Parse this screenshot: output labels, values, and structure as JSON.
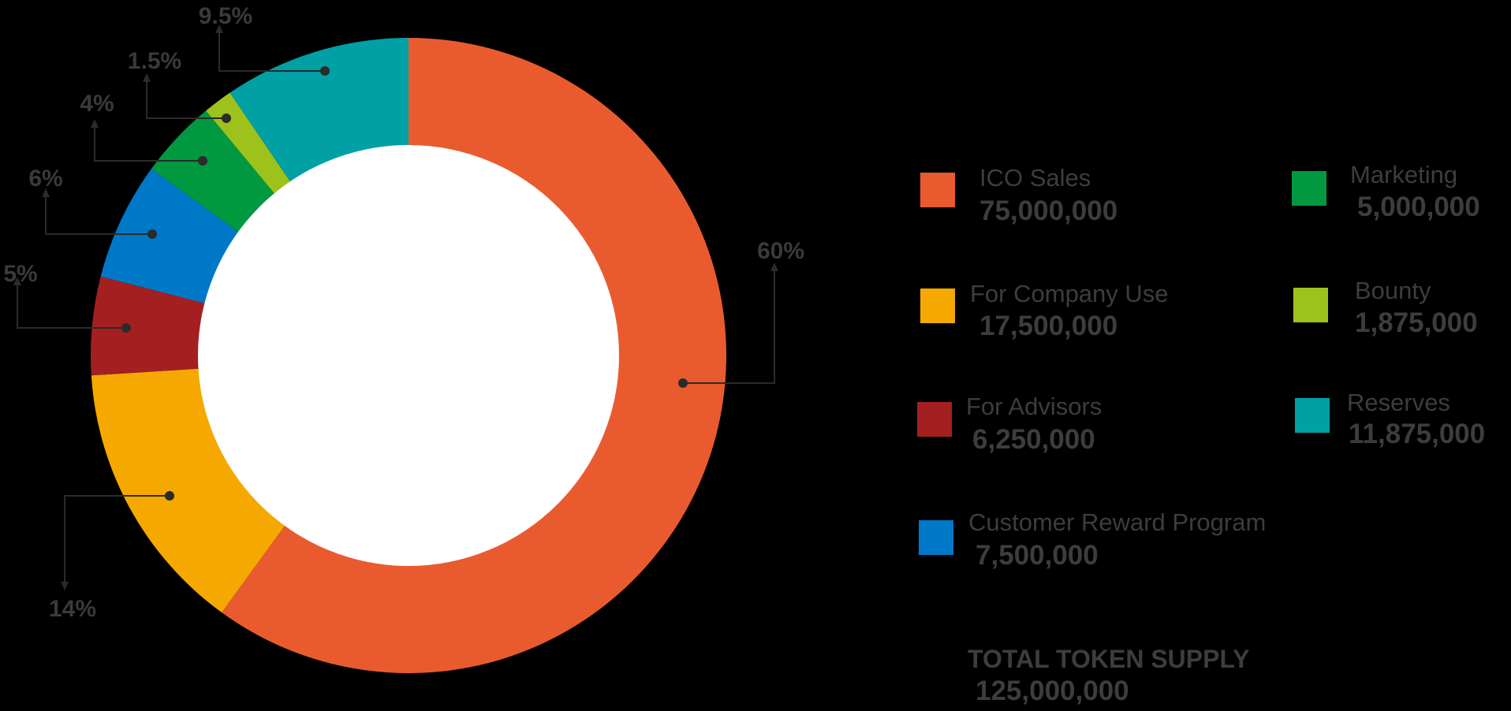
{
  "chart_data": {
    "type": "pie",
    "donut": true,
    "slices": [
      {
        "label": "ICO Sales",
        "percent": 60,
        "percent_label": "60%",
        "value": "75,000,000",
        "color": "#E95B2F"
      },
      {
        "label": "For Company Use",
        "percent": 14,
        "percent_label": "14%",
        "value": "17,500,000",
        "color": "#F5A800"
      },
      {
        "label": "For Advisors",
        "percent": 5,
        "percent_label": "5%",
        "value": "6,250,000",
        "color": "#A42020"
      },
      {
        "label": "Customer Reward Program",
        "percent": 6,
        "percent_label": "6%",
        "value": "7,500,000",
        "color": "#0078C8"
      },
      {
        "label": "Marketing",
        "percent": 4,
        "percent_label": "4%",
        "value": "5,000,000",
        "color": "#00993F"
      },
      {
        "label": "Bounty",
        "percent": 1.5,
        "percent_label": "1.5%",
        "value": "1,875,000",
        "color": "#9DC21B"
      },
      {
        "label": "Reserves",
        "percent": 9.5,
        "percent_label": "9.5%",
        "value": "11,875,000",
        "color": "#00A0A5"
      }
    ],
    "legend_placement": "right",
    "total": {
      "label": "TOTAL TOKEN SUPPLY",
      "value": "125,000,000"
    }
  }
}
